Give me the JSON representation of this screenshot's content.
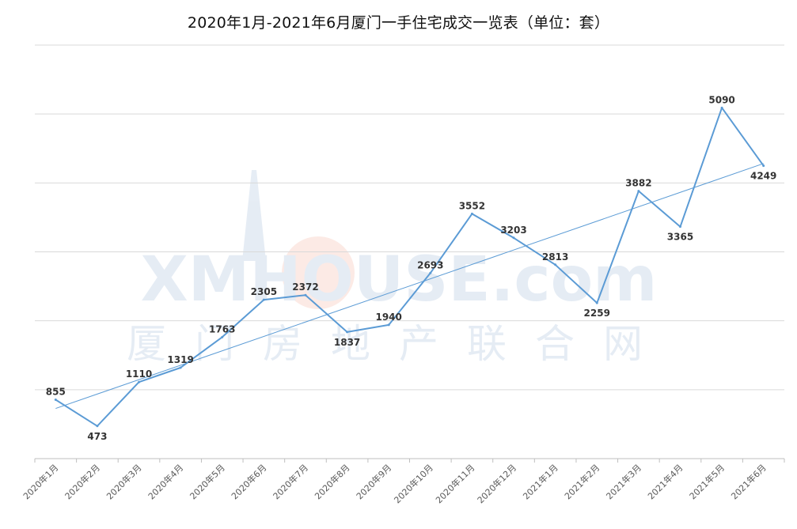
{
  "chart_data": {
    "type": "line",
    "title": "2020年1月-2021年6月厦门一手住宅成交一览表（单位：套）",
    "xlabel": "",
    "ylabel": "",
    "categories": [
      "2020年1月",
      "2020年2月",
      "2020年3月",
      "2020年4月",
      "2020年5月",
      "2020年6月",
      "2020年7月",
      "2020年8月",
      "2020年9月",
      "2020年10月",
      "2020年11月",
      "2020年12月",
      "2021年1月",
      "2021年2月",
      "2021年3月",
      "2021年4月",
      "2021年5月",
      "2021年6月"
    ],
    "series": [
      {
        "values": [
          855,
          473,
          1110,
          1319,
          1763,
          2305,
          2372,
          1837,
          1940,
          2693,
          3552,
          3203,
          2813,
          2259,
          3882,
          3365,
          5090,
          4249
        ]
      }
    ],
    "trendline": "linear",
    "ylim": [
      0,
      6000
    ],
    "grid": true,
    "legend": "none",
    "data_labels": true,
    "colors": {
      "series": "#5b9bd5",
      "grid": "#d9d9d9"
    }
  },
  "watermark": {
    "latin": "XMHOUSE.com",
    "cjk": "厦门房地产联合网",
    "color": "#6d93c4",
    "sun_color": "#f08a6c"
  }
}
